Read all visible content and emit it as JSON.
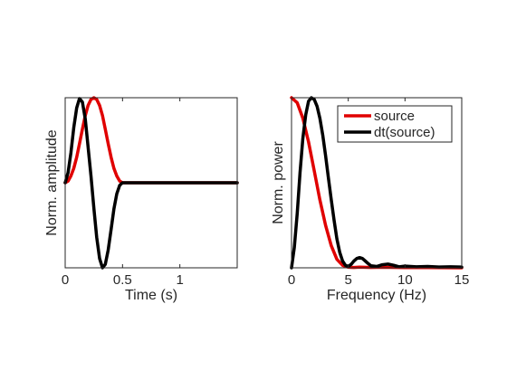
{
  "chart_data": [
    {
      "type": "line",
      "xlabel": "Time (s)",
      "ylabel": "Norm. amplitude",
      "xlim": [
        0,
        1.5
      ],
      "ylim": [
        -1,
        1
      ],
      "xticks": [
        0,
        0.5,
        1
      ],
      "xtick_labels": [
        "0",
        "0.5",
        "1"
      ],
      "yticks": [],
      "grid": false,
      "series": [
        {
          "color": "#e00000",
          "x": [
            0,
            0.025,
            0.05,
            0.075,
            0.1,
            0.125,
            0.15,
            0.175,
            0.2,
            0.225,
            0.25,
            0.275,
            0.3,
            0.325,
            0.35,
            0.375,
            0.4,
            0.425,
            0.45,
            0.475,
            0.5,
            0.75,
            1.0,
            1.25,
            1.5
          ],
          "y": [
            0,
            0.02,
            0.08,
            0.17,
            0.3,
            0.46,
            0.63,
            0.79,
            0.91,
            0.98,
            1.0,
            0.98,
            0.91,
            0.79,
            0.63,
            0.46,
            0.3,
            0.17,
            0.08,
            0.02,
            0,
            0,
            0,
            0,
            0
          ]
        },
        {
          "color": "#000000",
          "x": [
            0,
            0.025,
            0.05,
            0.075,
            0.1,
            0.125,
            0.15,
            0.175,
            0.2,
            0.225,
            0.25,
            0.275,
            0.3,
            0.325,
            0.35,
            0.375,
            0.4,
            0.425,
            0.45,
            0.475,
            0.5,
            0.75,
            1.0,
            1.25,
            1.5
          ],
          "y": [
            0,
            0.12,
            0.35,
            0.65,
            0.88,
            0.99,
            0.95,
            0.75,
            0.42,
            0.08,
            -0.3,
            -0.64,
            -0.89,
            -1.0,
            -0.96,
            -0.79,
            -0.55,
            -0.31,
            -0.13,
            -0.03,
            0,
            0,
            0,
            0,
            0
          ]
        }
      ]
    },
    {
      "type": "line",
      "xlabel": "Frequency (Hz)",
      "ylabel": "Norm. power",
      "xlim": [
        0,
        15
      ],
      "ylim": [
        0,
        1
      ],
      "xticks": [
        0,
        5,
        10,
        15
      ],
      "xtick_labels": [
        "0",
        "5",
        "10",
        "15"
      ],
      "yticks": [],
      "grid": false,
      "legend": {
        "placement": "top-right",
        "entries": [
          "source",
          "dt(source)"
        ]
      },
      "series": [
        {
          "name": "source",
          "color": "#e00000",
          "x": [
            0,
            0.5,
            1,
            1.5,
            2,
            2.5,
            3,
            3.5,
            4,
            4.5,
            5,
            5.5,
            6,
            7,
            8,
            10,
            12,
            15
          ],
          "y": [
            1.0,
            0.97,
            0.88,
            0.74,
            0.57,
            0.4,
            0.25,
            0.13,
            0.05,
            0.015,
            0.003,
            0.002,
            0.004,
            0.002,
            0.003,
            0.001,
            0.001,
            0
          ]
        },
        {
          "name": "dt(source)",
          "color": "#000000",
          "x": [
            0,
            0.25,
            0.5,
            0.75,
            1,
            1.25,
            1.5,
            1.75,
            2,
            2.25,
            2.5,
            2.75,
            3,
            3.25,
            3.5,
            3.75,
            4,
            4.25,
            4.5,
            4.75,
            5,
            5.25,
            5.5,
            5.75,
            6,
            6.25,
            6.5,
            6.75,
            7,
            7.5,
            8,
            8.5,
            9,
            9.5,
            10,
            11,
            12,
            13,
            14,
            15
          ],
          "y": [
            0,
            0.12,
            0.32,
            0.56,
            0.76,
            0.9,
            0.98,
            1.0,
            0.99,
            0.95,
            0.88,
            0.78,
            0.66,
            0.53,
            0.4,
            0.28,
            0.17,
            0.09,
            0.04,
            0.015,
            0.008,
            0.02,
            0.04,
            0.055,
            0.06,
            0.055,
            0.04,
            0.025,
            0.012,
            0.008,
            0.018,
            0.022,
            0.015,
            0.006,
            0.01,
            0.006,
            0.008,
            0.005,
            0.006,
            0.004
          ]
        }
      ]
    }
  ]
}
